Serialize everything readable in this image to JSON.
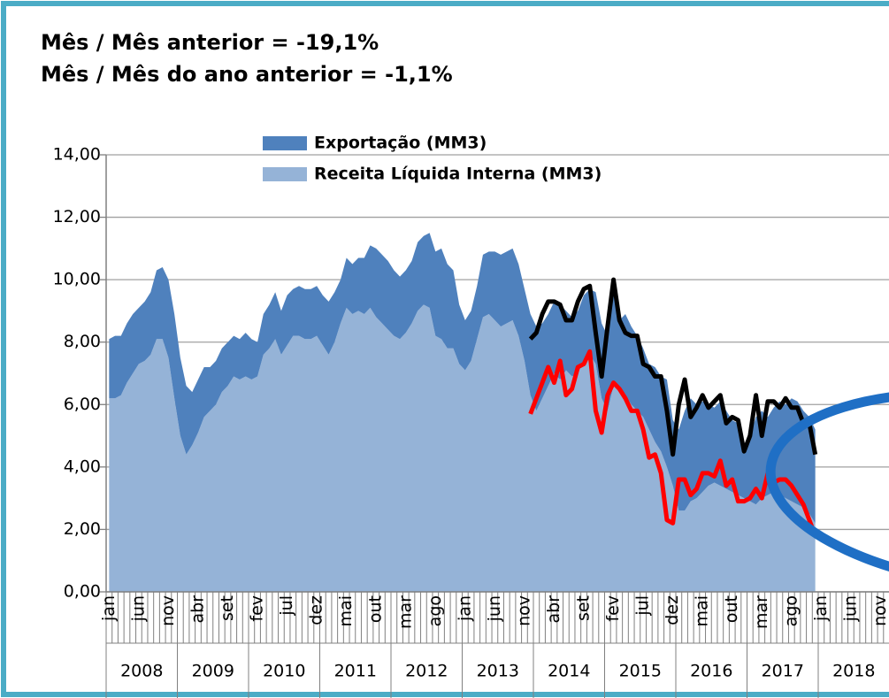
{
  "chart_data": {
    "type": "area",
    "stacked": true,
    "annotations": [
      "Mês / Mês anterior = -19,1%",
      "Mês / Mês do ano anterior = -1,1%"
    ],
    "categories": [
      "jan",
      null,
      null,
      null,
      null,
      "jun",
      null,
      null,
      null,
      null,
      "nov",
      null,
      null,
      null,
      null,
      "abr",
      null,
      null,
      null,
      null,
      "set",
      null,
      null,
      null,
      null,
      "fev",
      null,
      null,
      null,
      null,
      "jul",
      null,
      null,
      null,
      null,
      "dez",
      null,
      null,
      null,
      null,
      "mai",
      null,
      null,
      null,
      null,
      "out",
      null,
      null,
      null,
      null,
      "mar",
      null,
      null,
      null,
      null,
      "ago",
      null,
      null,
      null,
      null,
      "jan",
      null,
      null,
      null,
      null,
      "jun",
      null,
      null,
      null,
      null,
      "nov",
      null,
      null,
      null,
      null,
      "abr",
      null,
      null,
      null,
      null,
      "set",
      null,
      null,
      null,
      null,
      "fev",
      null,
      null,
      null,
      null,
      "jul",
      null,
      null,
      null,
      null,
      "dez",
      null,
      null,
      null,
      null,
      "mai",
      null,
      null,
      null,
      null,
      "out",
      null,
      null,
      null,
      null,
      "mar",
      null,
      null,
      null,
      null,
      "ago",
      null,
      null,
      null,
      null,
      "jan",
      null,
      null,
      null,
      null,
      "jun",
      null,
      null,
      null,
      null,
      "nov",
      null
    ],
    "x_groups": [
      "2008",
      "2009",
      "2010",
      "2011",
      "2012",
      "2013",
      "2014",
      "2015",
      "2016",
      "2017",
      "2018"
    ],
    "series": [
      {
        "name": "Receita Líquida Interna (MM3)",
        "color": "#95b3d7",
        "values": [
          6.2,
          6.2,
          6.3,
          6.7,
          7.0,
          7.3,
          7.4,
          7.6,
          8.1,
          8.1,
          7.5,
          6.2,
          5.0,
          4.4,
          4.7,
          5.1,
          5.6,
          5.8,
          6.0,
          6.4,
          6.6,
          6.9,
          6.8,
          6.9,
          6.8,
          6.9,
          7.6,
          7.8,
          8.1,
          7.6,
          7.9,
          8.2,
          8.2,
          8.1,
          8.1,
          8.2,
          7.9,
          7.6,
          8.0,
          8.6,
          9.1,
          8.9,
          9.0,
          8.9,
          9.1,
          8.8,
          8.6,
          8.4,
          8.2,
          8.1,
          8.3,
          8.6,
          9.0,
          9.2,
          9.1,
          8.2,
          8.1,
          7.8,
          7.8,
          7.3,
          7.1,
          7.4,
          8.1,
          8.8,
          8.9,
          8.7,
          8.5,
          8.6,
          8.7,
          8.2,
          7.4,
          6.3,
          5.8,
          6.2,
          6.6,
          7.0,
          6.8,
          7.1,
          6.9,
          7.0,
          7.4,
          7.6,
          7.3,
          6.2,
          5.8,
          6.6,
          6.4,
          6.3,
          6.0,
          5.8,
          5.6,
          5.2,
          4.8,
          4.5,
          4.0,
          3.4,
          2.6,
          2.6,
          2.9,
          3.0,
          3.2,
          3.4,
          3.5,
          3.4,
          3.3,
          3.2,
          3.1,
          3.0,
          2.9,
          2.8,
          3.0,
          3.1,
          3.2,
          3.1,
          3.0,
          2.9,
          2.8,
          2.7,
          2.5,
          2.2,
          null,
          null,
          null,
          null,
          null,
          null,
          null,
          null,
          null,
          null,
          null,
          null
        ]
      },
      {
        "name": "Exportação (MM3)",
        "color": "#4f81bd",
        "values": [
          1.9,
          2.0,
          1.9,
          1.9,
          1.9,
          1.8,
          1.9,
          2.0,
          2.2,
          2.3,
          2.5,
          2.7,
          2.5,
          2.2,
          1.7,
          1.7,
          1.6,
          1.4,
          1.4,
          1.4,
          1.4,
          1.3,
          1.3,
          1.4,
          1.3,
          1.1,
          1.3,
          1.4,
          1.5,
          1.4,
          1.6,
          1.5,
          1.6,
          1.6,
          1.6,
          1.6,
          1.6,
          1.7,
          1.6,
          1.4,
          1.6,
          1.6,
          1.7,
          1.8,
          2.0,
          2.2,
          2.2,
          2.2,
          2.1,
          2.0,
          2.0,
          2.0,
          2.2,
          2.2,
          2.4,
          2.7,
          2.9,
          2.7,
          2.5,
          1.9,
          1.6,
          1.6,
          1.7,
          2.0,
          2.0,
          2.2,
          2.3,
          2.3,
          2.3,
          2.3,
          2.3,
          2.6,
          2.7,
          2.4,
          2.3,
          2.3,
          2.4,
          1.9,
          1.9,
          2.0,
          2.1,
          2.1,
          2.3,
          2.4,
          2.4,
          3.3,
          2.3,
          2.6,
          2.5,
          2.4,
          2.2,
          2.1,
          2.4,
          2.4,
          2.8,
          2.1,
          2.6,
          3.2,
          3.3,
          3.0,
          2.9,
          2.6,
          2.4,
          2.7,
          2.5,
          2.3,
          2.3,
          1.5,
          2.1,
          2.8,
          2.8,
          2.5,
          2.7,
          3.0,
          3.0,
          3.3,
          3.3,
          3.1,
          3.1,
          3.0,
          null,
          null,
          null,
          null,
          null,
          null,
          null,
          null,
          null,
          null,
          null,
          null
        ]
      },
      {
        "type": "line",
        "color": "#000000",
        "values": [
          null,
          null,
          null,
          null,
          null,
          null,
          null,
          null,
          null,
          null,
          null,
          null,
          null,
          null,
          null,
          null,
          null,
          null,
          null,
          null,
          null,
          null,
          null,
          null,
          null,
          null,
          null,
          null,
          null,
          null,
          null,
          null,
          null,
          null,
          null,
          null,
          null,
          null,
          null,
          null,
          null,
          null,
          null,
          null,
          null,
          null,
          null,
          null,
          null,
          null,
          null,
          null,
          null,
          null,
          null,
          null,
          null,
          null,
          null,
          null,
          null,
          null,
          null,
          null,
          null,
          null,
          null,
          null,
          null,
          null,
          null,
          8.1,
          8.3,
          8.9,
          9.3,
          9.3,
          9.2,
          8.7,
          8.7,
          9.3,
          9.7,
          9.8,
          8.3,
          6.9,
          8.5,
          10.0,
          8.7,
          8.3,
          8.2,
          8.2,
          7.3,
          7.2,
          6.9,
          6.9,
          5.8,
          4.4,
          6.0,
          6.8,
          5.6,
          5.9,
          6.3,
          5.9,
          6.1,
          6.3,
          5.4,
          5.6,
          5.5,
          4.5,
          5.0,
          6.3,
          5.0,
          6.1,
          6.1,
          5.9,
          6.2,
          5.9,
          5.9,
          5.4,
          5.4,
          4.4,
          null,
          null,
          null,
          null,
          null,
          null,
          null,
          null,
          null,
          null,
          null,
          null
        ]
      },
      {
        "type": "line",
        "color": "#ff0000",
        "values": [
          null,
          null,
          null,
          null,
          null,
          null,
          null,
          null,
          null,
          null,
          null,
          null,
          null,
          null,
          null,
          null,
          null,
          null,
          null,
          null,
          null,
          null,
          null,
          null,
          null,
          null,
          null,
          null,
          null,
          null,
          null,
          null,
          null,
          null,
          null,
          null,
          null,
          null,
          null,
          null,
          null,
          null,
          null,
          null,
          null,
          null,
          null,
          null,
          null,
          null,
          null,
          null,
          null,
          null,
          null,
          null,
          null,
          null,
          null,
          null,
          null,
          null,
          null,
          null,
          null,
          null,
          null,
          null,
          null,
          null,
          null,
          5.7,
          6.2,
          6.7,
          7.2,
          6.7,
          7.4,
          6.3,
          6.5,
          7.2,
          7.3,
          7.7,
          5.8,
          5.1,
          6.3,
          6.7,
          6.5,
          6.2,
          5.8,
          5.8,
          5.2,
          4.3,
          4.4,
          3.8,
          2.3,
          2.2,
          3.6,
          3.6,
          3.1,
          3.3,
          3.8,
          3.8,
          3.7,
          4.2,
          3.4,
          3.6,
          2.9,
          2.9,
          3.0,
          3.3,
          3.0,
          3.8,
          3.5,
          3.6,
          3.6,
          3.4,
          3.1,
          2.8,
          2.3,
          1.8,
          null,
          null,
          null,
          null,
          null,
          null,
          null,
          null,
          null,
          null,
          null,
          null
        ]
      }
    ],
    "ylim": [
      0,
      14
    ],
    "yticks": [
      {
        "value": 0,
        "label": "0,00"
      },
      {
        "value": 2,
        "label": "2,00"
      },
      {
        "value": 4,
        "label": "4,00"
      },
      {
        "value": 6,
        "label": "6,00"
      },
      {
        "value": 8,
        "label": "8,00"
      },
      {
        "value": 10,
        "label": "10,00"
      },
      {
        "value": 12,
        "label": "12,00"
      },
      {
        "value": 14,
        "label": "14,00"
      }
    ],
    "grid": true,
    "legend": "top"
  }
}
